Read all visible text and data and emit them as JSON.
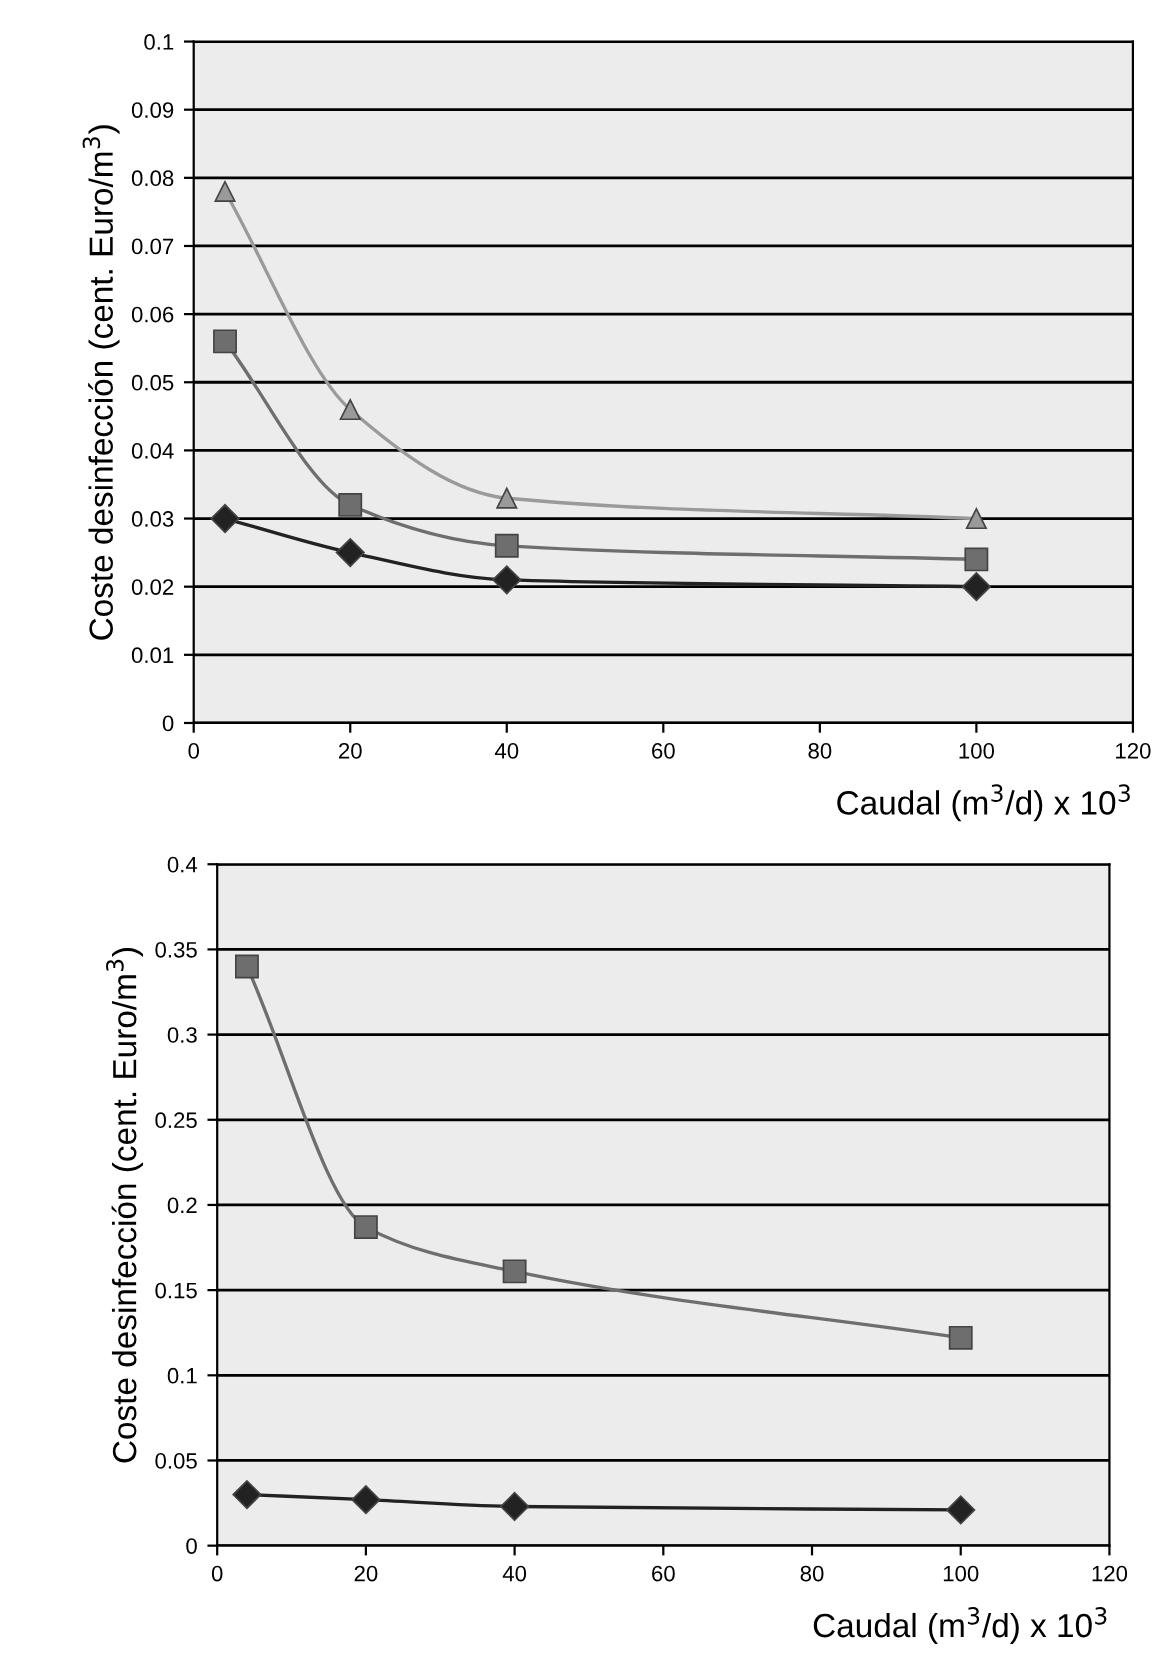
{
  "chart_data": [
    {
      "type": "line",
      "xlabel": "Caudal (m$^{3}$/d) x 10$^{3}$",
      "ylabel": "Coste desinfección (cent. Euro/m$^{3}$)",
      "xlim": [
        0,
        120
      ],
      "xticks": [
        0,
        20,
        40,
        60,
        80,
        100,
        120
      ],
      "ylim": [
        0,
        0.1
      ],
      "yticks": [
        0,
        0.01,
        0.02,
        0.03,
        0.04,
        0.05,
        0.06,
        0.07,
        0.08,
        0.09,
        0.1
      ],
      "grid": "y",
      "legend": false,
      "series": [
        {
          "color": "#9a9a9a",
          "marker": "triangle",
          "x": [
            4,
            20,
            40,
            100
          ],
          "values": [
            0.078,
            0.046,
            0.033,
            0.03
          ]
        },
        {
          "color": "#6e6e6e",
          "marker": "square",
          "x": [
            4,
            20,
            40,
            100
          ],
          "values": [
            0.056,
            0.032,
            0.026,
            0.024
          ]
        },
        {
          "color": "#222222",
          "marker": "diamond",
          "x": [
            4,
            20,
            40,
            100
          ],
          "values": [
            0.03,
            0.025,
            0.021,
            0.02
          ]
        }
      ]
    },
    {
      "type": "line",
      "xlabel": "Caudal (m$^{3}$/d) x 10$^{3}$",
      "ylabel": "Coste desinfección (cent. Euro/m$^{3}$)",
      "xlim": [
        0,
        120
      ],
      "xticks": [
        0,
        20,
        40,
        60,
        80,
        100,
        120
      ],
      "ylim": [
        0,
        0.4
      ],
      "yticks": [
        0,
        0.05,
        0.1,
        0.15,
        0.2,
        0.25,
        0.3,
        0.35,
        0.4
      ],
      "grid": "y",
      "legend": false,
      "series": [
        {
          "color": "#6e6e6e",
          "marker": "square",
          "x": [
            4,
            20,
            40,
            100
          ],
          "values": [
            0.34,
            0.187,
            0.161,
            0.122
          ]
        },
        {
          "color": "#222222",
          "marker": "diamond",
          "x": [
            4,
            20,
            40,
            100
          ],
          "values": [
            0.03,
            0.027,
            0.023,
            0.021
          ]
        }
      ]
    }
  ]
}
